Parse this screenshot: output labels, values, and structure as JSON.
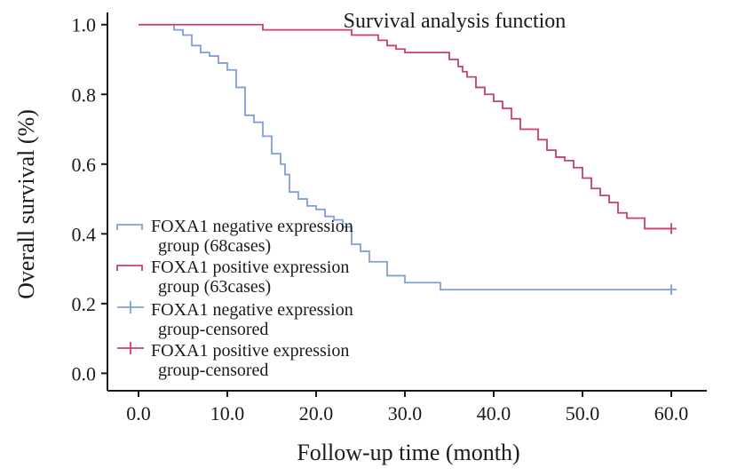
{
  "chart_data": {
    "type": "line",
    "title": "Survival analysis function",
    "xlabel": "Follow-up time (month)",
    "ylabel": "Overall survival (%)",
    "xlim": [
      -3.5,
      64
    ],
    "ylim": [
      -0.05,
      1.035
    ],
    "xticks": [
      0,
      10,
      20,
      30,
      40,
      50,
      60
    ],
    "xtick_labels": [
      "0.0",
      "10.0",
      "20.0",
      "30.0",
      "40.0",
      "50.0",
      "60.0"
    ],
    "yticks": [
      0,
      0.2,
      0.4,
      0.6,
      0.8,
      1.0
    ],
    "ytick_labels": [
      "0.0",
      "0.2",
      "0.4",
      "0.6",
      "0.8",
      "1.0"
    ],
    "grid": false,
    "legend_position": "left",
    "series": [
      {
        "name": "FOXA1 negative expression group (68cases)",
        "color": "#7f9fdc",
        "step": true,
        "x": [
          0,
          4,
          5,
          6,
          7,
          8,
          9,
          10,
          11,
          12,
          13,
          14,
          15,
          16,
          16.5,
          17,
          18,
          19,
          20,
          21,
          22,
          23,
          24,
          25,
          26,
          28,
          30,
          34,
          60
        ],
        "y": [
          1.0,
          0.985,
          0.97,
          0.94,
          0.92,
          0.91,
          0.89,
          0.87,
          0.82,
          0.74,
          0.72,
          0.68,
          0.63,
          0.6,
          0.57,
          0.52,
          0.5,
          0.48,
          0.47,
          0.45,
          0.44,
          0.42,
          0.37,
          0.35,
          0.32,
          0.28,
          0.26,
          0.24,
          0.24
        ],
        "censored": [
          {
            "x": 60,
            "y": 0.24
          }
        ]
      },
      {
        "name": "FOXA1 positive expression group (63cases)",
        "color": "#c6416a",
        "step": true,
        "x": [
          0,
          14,
          24,
          27,
          28,
          29,
          30,
          35,
          36,
          36.5,
          37,
          38,
          39,
          40,
          41,
          42,
          43,
          44,
          45,
          46,
          47,
          48,
          49,
          50,
          51,
          52,
          53,
          54,
          55,
          56,
          57,
          60
        ],
        "y": [
          1.0,
          0.985,
          0.97,
          0.955,
          0.94,
          0.93,
          0.92,
          0.9,
          0.88,
          0.865,
          0.85,
          0.82,
          0.8,
          0.78,
          0.76,
          0.73,
          0.7,
          0.7,
          0.67,
          0.64,
          0.62,
          0.61,
          0.59,
          0.56,
          0.53,
          0.51,
          0.49,
          0.46,
          0.445,
          0.445,
          0.415,
          0.415
        ],
        "censored": [
          {
            "x": 60,
            "y": 0.415
          }
        ]
      }
    ],
    "legend": [
      {
        "kind": "line",
        "color": "#7f9fdc",
        "line1": "FOXA1 negative expression",
        "line2": "group (68cases)"
      },
      {
        "kind": "line",
        "color": "#c6416a",
        "line1": "FOXA1 positive expression",
        "line2": "group (63cases)"
      },
      {
        "kind": "censor",
        "color": "#7f9fdc",
        "line1": "FOXA1 negative expression",
        "line2": "group-censored"
      },
      {
        "kind": "censor",
        "color": "#c6416a",
        "line1": "FOXA1 positive expression",
        "line2": "group-censored"
      }
    ]
  }
}
